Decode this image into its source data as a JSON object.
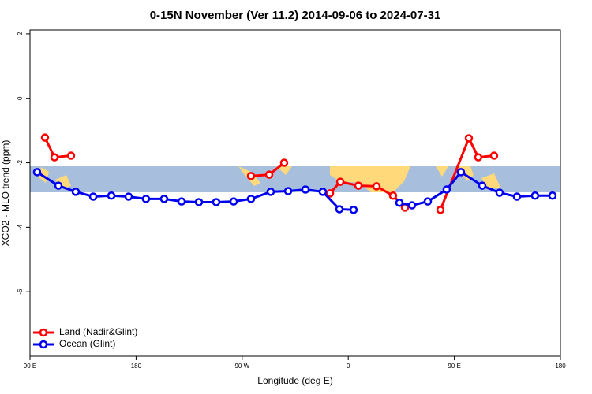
{
  "chart_data": {
    "type": "line",
    "title": "0-15N November (Ver 11.2)   2014-09-06 to 2024-07-31",
    "xlabel": "Longitude (deg E)",
    "ylabel": "XCO2 - MLO trend (ppm)",
    "xlim": [
      90,
      540
    ],
    "xticks": [
      {
        "value": 90,
        "label": "90 E"
      },
      {
        "value": 180,
        "label": "180"
      },
      {
        "value": 270,
        "label": "90 W"
      },
      {
        "value": 360,
        "label": "0"
      },
      {
        "value": 450,
        "label": "90 E"
      },
      {
        "value": 540,
        "label": "180"
      }
    ],
    "ylim": [
      -8,
      2.12
    ],
    "yticks": [
      -6,
      -4,
      -2,
      0,
      2
    ],
    "legend": "bottom-left",
    "series": [
      {
        "name": "Land (Nadir&Glint)",
        "color": "#ff0000",
        "x": [
          102.7,
          110.8,
          124.8,
          null,
          277.5,
          292.9,
          305.6,
          null,
          344.5,
          353.2,
          368.6,
          384.0,
          398.0,
          408.1,
          null,
          438.2,
          462.3,
          470.3,
          483.7
        ],
        "values": [
          -1.22,
          -1.83,
          -1.78,
          null,
          -2.41,
          -2.37,
          -2.0,
          null,
          -2.95,
          -2.59,
          -2.71,
          -2.73,
          -3.02,
          -3.39,
          null,
          -3.46,
          -1.24,
          -1.83,
          -1.78
        ]
      },
      {
        "name": "Ocean (Glint)",
        "color": "#0000ee",
        "x": [
          96.0,
          114.1,
          128.8,
          143.6,
          159.0,
          173.7,
          188.4,
          203.8,
          218.6,
          233.3,
          248.0,
          262.8,
          277.5,
          294.2,
          309.0,
          323.7,
          338.4,
          352.5,
          364.5,
          null,
          403.4,
          414.1,
          427.5,
          443.5,
          455.6,
          473.7,
          488.4,
          503.1,
          518.5,
          533.3
        ],
        "values": [
          -2.29,
          -2.71,
          -2.9,
          -3.05,
          -3.02,
          -3.05,
          -3.12,
          -3.12,
          -3.2,
          -3.22,
          -3.22,
          -3.2,
          -3.12,
          -2.9,
          -2.88,
          -2.83,
          -2.9,
          -3.44,
          -3.46,
          null,
          -3.24,
          -3.32,
          -3.2,
          -2.83,
          -2.29,
          -2.71,
          -2.93,
          -3.05,
          -3.02,
          -3.02
        ]
      }
    ]
  }
}
